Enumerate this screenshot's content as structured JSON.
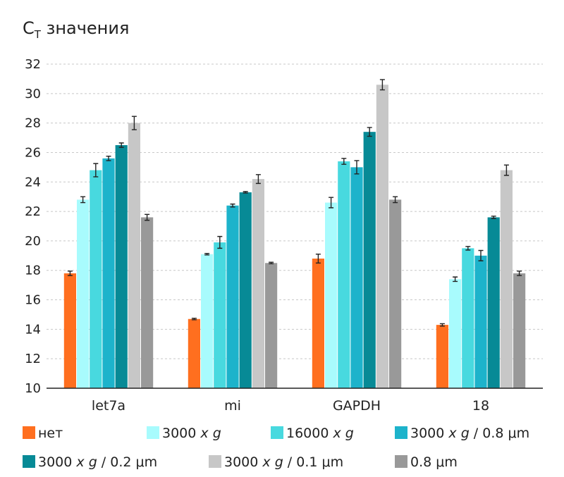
{
  "chart_data": {
    "type": "bar",
    "title_main": "C",
    "title_sub": "T",
    "title_rest": " значения",
    "categories": [
      "let7a",
      "mi",
      "GAPDH",
      "18"
    ],
    "ylim": [
      10,
      32
    ],
    "yticks": [
      "10",
      "12",
      "14",
      "16",
      "18",
      "20",
      "22",
      "24",
      "26",
      "28",
      "30",
      "32"
    ],
    "grid": true,
    "legend_position": "bottom",
    "series": [
      {
        "name": "нет",
        "name_parts": [
          "нет"
        ],
        "color": "#ff6f1f",
        "values": [
          17.8,
          14.7,
          18.8,
          14.3
        ],
        "errors": [
          0.15,
          0.05,
          0.3,
          0.08
        ]
      },
      {
        "name": "3000 x g",
        "name_parts": [
          "3000 ",
          "x g",
          ""
        ],
        "color": "#a8fbfd",
        "values": [
          22.8,
          19.1,
          22.6,
          17.4
        ],
        "errors": [
          0.2,
          0.05,
          0.35,
          0.15
        ]
      },
      {
        "name": "16000 x g",
        "name_parts": [
          "16000 ",
          "x g",
          ""
        ],
        "color": "#48d9df",
        "values": [
          24.8,
          19.9,
          25.4,
          19.5
        ],
        "errors": [
          0.45,
          0.4,
          0.2,
          0.12
        ]
      },
      {
        "name": "3000 x g / 0.8 μm",
        "name_parts": [
          "3000 ",
          "x g",
          " / 0.8 μm"
        ],
        "color": "#1db3cb",
        "values": [
          25.6,
          22.4,
          25.0,
          19.0
        ],
        "errors": [
          0.15,
          0.1,
          0.45,
          0.35
        ]
      },
      {
        "name": "3000 x g / 0.2 μm",
        "name_parts": [
          "3000 ",
          "x g",
          " / 0.2 μm"
        ],
        "color": "#078a96",
        "values": [
          26.5,
          23.3,
          27.4,
          21.6
        ],
        "errors": [
          0.15,
          0.05,
          0.3,
          0.08
        ]
      },
      {
        "name": "3000 x g / 0.1 μm",
        "name_parts": [
          "3000 ",
          "x g",
          " / 0.1 μm"
        ],
        "color": "#c7c7c7",
        "values": [
          28.0,
          24.2,
          30.6,
          24.8
        ],
        "errors": [
          0.45,
          0.3,
          0.35,
          0.35
        ]
      },
      {
        "name": "0.8 μm",
        "name_parts": [
          "0.8 μm"
        ],
        "color": "#999999",
        "values": [
          21.6,
          18.5,
          22.8,
          17.8
        ],
        "errors": [
          0.2,
          0.05,
          0.2,
          0.15
        ]
      }
    ]
  }
}
